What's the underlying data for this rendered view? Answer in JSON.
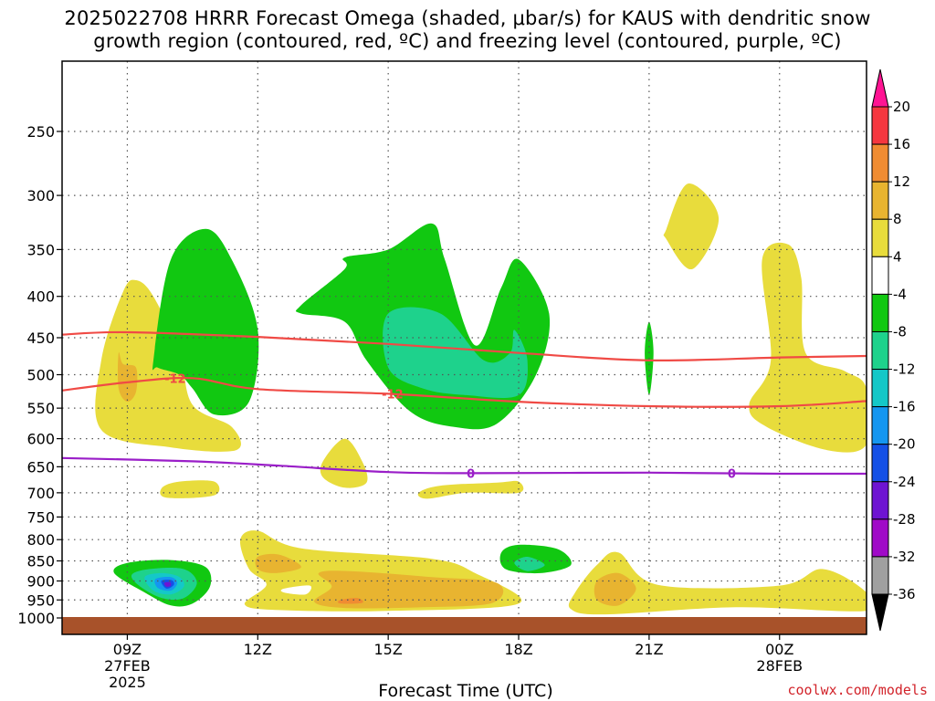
{
  "title": {
    "line1": "2025022708 HRRR Forecast Omega (shaded, μbar/s) for KAUS with dendritic snow",
    "line2": "growth region (contoured, red, ºC) and freezing level (contoured, purple, ºC)"
  },
  "x_axis_label": "Forecast Time (UTC)",
  "credit": "coolwx.com/models",
  "colors": {
    "dendritic_contour": "#f04a45",
    "freezing_contour": "#9a1ec8",
    "ground": "#a8522a"
  },
  "chart_data": {
    "type": "heatmap",
    "title": "2025022708 HRRR Forecast Omega (shaded, μbar/s) for KAUS with dendritic snow growth region (contoured, red, ºC) and freezing level (contoured, purple, ºC)",
    "xlabel": "Forecast Time (UTC)",
    "ylabel": "",
    "x_ticks": [
      {
        "label": "09Z",
        "sub": [
          "27FEB",
          "2025"
        ],
        "hours": 9
      },
      {
        "label": "12Z",
        "sub": [],
        "hours": 12
      },
      {
        "label": "15Z",
        "sub": [],
        "hours": 15
      },
      {
        "label": "18Z",
        "sub": [],
        "hours": 18
      },
      {
        "label": "21Z",
        "sub": [],
        "hours": 21
      },
      {
        "label": "00Z",
        "sub": [
          "28FEB"
        ],
        "hours": 24
      }
    ],
    "y_ticks": [
      250,
      300,
      350,
      400,
      450,
      500,
      550,
      600,
      650,
      700,
      750,
      800,
      850,
      900,
      950,
      1000
    ],
    "y_scale": "log-pressure (hPa, inverted)",
    "colorbar": {
      "units": "μbar/s",
      "labels": [
        "20",
        "16",
        "12",
        "8",
        "4",
        "-4",
        "-8",
        "-12",
        "-16",
        "-20",
        "-24",
        "-28",
        "-32",
        "-36"
      ],
      "colors": [
        "#ff1493",
        "#f5373f",
        "#f08c32",
        "#e8b430",
        "#e8dc3c",
        "#ffffff",
        "#11c811",
        "#1ed28c",
        "#14c8c8",
        "#1496f0",
        "#1450e6",
        "#6e14d2",
        "#a00ac8",
        "#a0a0a0",
        "#000000"
      ]
    },
    "contours": [
      {
        "name": "dendritic upper",
        "value": -12,
        "color": "#f04a45",
        "points": [
          [
            7.5,
            446
          ],
          [
            9,
            443
          ],
          [
            12,
            449
          ],
          [
            15,
            458
          ],
          [
            18,
            470
          ],
          [
            21,
            480
          ],
          [
            24,
            476
          ],
          [
            26,
            474
          ]
        ]
      },
      {
        "name": "dendritic lower",
        "value": -12,
        "color": "#f04a45",
        "points": [
          [
            7.5,
            523
          ],
          [
            9,
            511
          ],
          [
            10.5,
            505
          ],
          [
            12,
            521
          ],
          [
            15,
            528
          ],
          [
            18,
            540
          ],
          [
            21,
            547
          ],
          [
            24,
            547
          ],
          [
            26,
            539
          ]
        ]
      },
      {
        "name": "freezing level",
        "value": 0,
        "color": "#9a1ec8",
        "points": [
          [
            7.5,
            634
          ],
          [
            10.5,
            640
          ],
          [
            12.5,
            648
          ],
          [
            15,
            660
          ],
          [
            17,
            662
          ],
          [
            21,
            661
          ],
          [
            24,
            663
          ],
          [
            26,
            663
          ]
        ]
      }
    ],
    "contour_labels": [
      {
        "text": "-12",
        "x": 10.1,
        "p": 505,
        "color": "#f04a45"
      },
      {
        "text": "-12",
        "x": 15.1,
        "p": 528,
        "color": "#f04a45"
      },
      {
        "text": "0",
        "x": 16.9,
        "p": 662,
        "color": "#9a1ec8"
      },
      {
        "text": "0",
        "x": 22.9,
        "p": 662,
        "color": "#9a1ec8"
      }
    ],
    "regions": [
      {
        "fill": "#e8dc3c",
        "points": [
          [
            8.4,
            480
          ],
          [
            8.9,
            395
          ],
          [
            9.2,
            382
          ],
          [
            9.6,
            400
          ],
          [
            10.2,
            470
          ],
          [
            10.5,
            545
          ],
          [
            11.4,
            580
          ],
          [
            11.5,
            620
          ],
          [
            10,
            615
          ],
          [
            8.4,
            585
          ]
        ]
      },
      {
        "fill": "#e8b430",
        "points": [
          [
            8.8,
            470
          ],
          [
            8.9,
            485
          ],
          [
            9.2,
            490
          ],
          [
            9.2,
            525
          ],
          [
            9.0,
            540
          ],
          [
            8.8,
            520
          ]
        ]
      },
      {
        "fill": "#e8dc3c",
        "points": [
          [
            9.8,
            690
          ],
          [
            10.2,
            678
          ],
          [
            11,
            678
          ],
          [
            11,
            705
          ],
          [
            9.9,
            710
          ]
        ]
      },
      {
        "fill": "#e8dc3c",
        "points": [
          [
            13.5,
            640
          ],
          [
            14,
            600
          ],
          [
            14.4,
            640
          ],
          [
            14.5,
            680
          ],
          [
            14,
            690
          ],
          [
            13.5,
            670
          ]
        ]
      },
      {
        "fill": "#e8dc3c",
        "points": [
          [
            15.7,
            700
          ],
          [
            16.2,
            686
          ],
          [
            17.5,
            680
          ],
          [
            18,
            678
          ],
          [
            18,
            700
          ],
          [
            16.8,
            700
          ],
          [
            15.9,
            712
          ]
        ]
      },
      {
        "fill": "#e8dc3c",
        "points": [
          [
            21.4,
            330
          ],
          [
            21.9,
            290
          ],
          [
            22.6,
            320
          ],
          [
            22.0,
            370
          ],
          [
            21.4,
            340
          ]
        ]
      },
      {
        "fill": "#e8dc3c",
        "points": [
          [
            23.6,
            360
          ],
          [
            24.2,
            345
          ],
          [
            24.5,
            380
          ],
          [
            24.6,
            470
          ],
          [
            25.5,
            495
          ],
          [
            26,
            520
          ],
          [
            26,
            610
          ],
          [
            25.1,
            620
          ],
          [
            23.7,
            580
          ],
          [
            23.3,
            545
          ],
          [
            23.8,
            480
          ]
        ]
      },
      {
        "fill": "#e8dc3c",
        "points": [
          [
            11.6,
            800
          ],
          [
            12,
            780
          ],
          [
            13,
            820
          ],
          [
            16,
            845
          ],
          [
            17,
            880
          ],
          [
            18,
            960
          ],
          [
            15,
            980
          ],
          [
            12.5,
            978
          ],
          [
            11.7,
            962
          ],
          [
            12.2,
            910
          ],
          [
            11.8,
            870
          ]
        ]
      },
      {
        "fill": "#ffffff",
        "points": [
          [
            12.6,
            920
          ],
          [
            13.2,
            912
          ],
          [
            13.1,
            935
          ],
          [
            12.6,
            930
          ]
        ]
      },
      {
        "fill": "#e8b430",
        "points": [
          [
            12,
            840
          ],
          [
            12.5,
            835
          ],
          [
            13,
            865
          ],
          [
            12.4,
            880
          ],
          [
            12,
            870
          ]
        ]
      },
      {
        "fill": "#e8b430",
        "points": [
          [
            13.4,
            880
          ],
          [
            14.1,
            875
          ],
          [
            16,
            890
          ],
          [
            17.5,
            905
          ],
          [
            17.4,
            958
          ],
          [
            15.8,
            970
          ],
          [
            14,
            972
          ],
          [
            13.3,
            955
          ],
          [
            13.7,
            915
          ]
        ]
      },
      {
        "fill": "#f08c32",
        "points": [
          [
            13.9,
            950
          ],
          [
            14.3,
            945
          ],
          [
            14.4,
            958
          ],
          [
            13.9,
            960
          ]
        ]
      },
      {
        "fill": "#e8dc3c",
        "points": [
          [
            19.3,
            930
          ],
          [
            19.8,
            860
          ],
          [
            20.3,
            830
          ],
          [
            21.2,
            910
          ],
          [
            24,
            912
          ],
          [
            25,
            870
          ],
          [
            26,
            930
          ],
          [
            26,
            980
          ],
          [
            23,
            970
          ],
          [
            20,
            990
          ],
          [
            19.2,
            975
          ]
        ]
      },
      {
        "fill": "#e8b430",
        "points": [
          [
            19.8,
            900
          ],
          [
            20.3,
            880
          ],
          [
            20.7,
            920
          ],
          [
            20.3,
            965
          ],
          [
            19.8,
            950
          ]
        ]
      },
      {
        "fill": "#11c811",
        "points": [
          [
            9.6,
            480
          ],
          [
            10,
            360
          ],
          [
            10.8,
            330
          ],
          [
            11.4,
            360
          ],
          [
            12,
            440
          ],
          [
            11.8,
            540
          ],
          [
            11,
            560
          ],
          [
            10.5,
            520
          ],
          [
            10.2,
            500
          ],
          [
            9.7,
            490
          ]
        ]
      },
      {
        "fill": "#11c811",
        "points": [
          [
            13,
            410
          ],
          [
            14,
            370
          ],
          [
            14,
            358
          ],
          [
            15,
            350
          ],
          [
            16,
            325
          ],
          [
            16.3,
            360
          ],
          [
            17,
            460
          ],
          [
            17.6,
            390
          ],
          [
            18,
            360
          ],
          [
            18.7,
            420
          ],
          [
            18.4,
            500
          ],
          [
            17.5,
            575
          ],
          [
            16.5,
            580
          ],
          [
            15.5,
            555
          ],
          [
            14.5,
            480
          ],
          [
            14,
            430
          ],
          [
            13,
            420
          ]
        ]
      },
      {
        "fill": "#1ed28c",
        "points": [
          [
            15,
            420
          ],
          [
            16.2,
            420
          ],
          [
            17.2,
            480
          ],
          [
            17.8,
            470
          ],
          [
            17.9,
            440
          ],
          [
            18.2,
            480
          ],
          [
            18,
            530
          ],
          [
            16.8,
            530
          ],
          [
            15.8,
            520
          ],
          [
            15,
            490
          ]
        ]
      },
      {
        "fill": "#11c811",
        "points": [
          [
            20.9,
            470
          ],
          [
            21,
            430
          ],
          [
            21.1,
            470
          ],
          [
            21,
            530
          ]
        ]
      },
      {
        "fill": "#11c811",
        "points": [
          [
            17.6,
            830
          ],
          [
            18,
            812
          ],
          [
            18.9,
            822
          ],
          [
            19.2,
            860
          ],
          [
            18.5,
            880
          ],
          [
            17.7,
            870
          ]
        ]
      },
      {
        "fill": "#1ed28c",
        "points": [
          [
            17.9,
            855
          ],
          [
            18.2,
            840
          ],
          [
            18.6,
            860
          ],
          [
            18.2,
            875
          ]
        ]
      },
      {
        "fill": "#11c811",
        "points": [
          [
            8.7,
            880
          ],
          [
            9,
            855
          ],
          [
            10,
            848
          ],
          [
            10.8,
            865
          ],
          [
            10.9,
            915
          ],
          [
            10.5,
            960
          ],
          [
            10,
            965
          ],
          [
            9.4,
            930
          ]
        ]
      },
      {
        "fill": "#1ed28c",
        "points": [
          [
            9.1,
            885
          ],
          [
            9.5,
            870
          ],
          [
            10.3,
            870
          ],
          [
            10.6,
            905
          ],
          [
            10.3,
            945
          ],
          [
            9.8,
            945
          ],
          [
            9.3,
            915
          ]
        ]
      },
      {
        "fill": "#14c8c8",
        "points": [
          [
            9.4,
            890
          ],
          [
            9.8,
            880
          ],
          [
            10.2,
            890
          ],
          [
            10.3,
            915
          ],
          [
            10.0,
            935
          ],
          [
            9.6,
            925
          ]
        ]
      },
      {
        "fill": "#1496f0",
        "points": [
          [
            9.65,
            895
          ],
          [
            10.0,
            890
          ],
          [
            10.15,
            905
          ],
          [
            10.0,
            925
          ],
          [
            9.7,
            918
          ]
        ]
      },
      {
        "fill": "#1450e6",
        "points": [
          [
            9.78,
            900
          ],
          [
            10.02,
            898
          ],
          [
            10.07,
            910
          ],
          [
            9.9,
            920
          ]
        ]
      },
      {
        "fill": "#6e14d2",
        "points": [
          [
            9.85,
            905
          ],
          [
            9.98,
            903
          ],
          [
            10.0,
            912
          ],
          [
            9.9,
            915
          ]
        ]
      }
    ]
  }
}
